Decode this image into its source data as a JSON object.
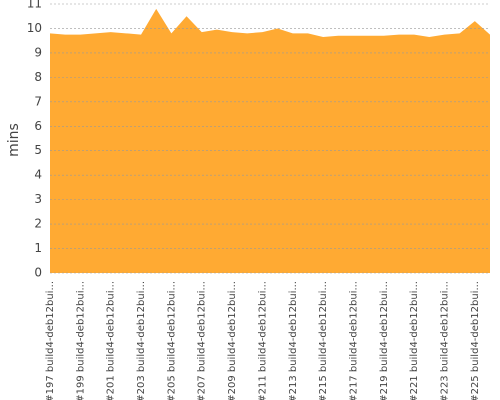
{
  "chart_data": {
    "type": "area",
    "y_label": "mins",
    "categories": [
      "#197 build4-deb12bui...",
      null,
      "#199 build4-deb12bui...",
      null,
      "#201 build4-deb12bui...",
      null,
      "#203 build4-deb12bui...",
      null,
      "#205 build4-deb12bui...",
      null,
      "#207 build4-deb12bui...",
      null,
      "#209 build4-deb12bui...",
      null,
      "#211 build4-deb12bui...",
      null,
      "#213 build4-deb12bui...",
      null,
      "#215 build4-deb12bui...",
      null,
      "#217 build4-deb12bui...",
      null,
      "#219 build4-deb12bui...",
      null,
      "#221 build4-deb12bui...",
      null,
      "#223 build4-deb12bui...",
      null,
      "#225 build4-deb12bui...",
      null
    ],
    "values": [
      9.8,
      9.75,
      9.75,
      9.8,
      9.85,
      9.8,
      9.75,
      10.8,
      9.8,
      10.5,
      9.85,
      9.95,
      9.85,
      9.8,
      9.85,
      10.0,
      9.8,
      9.8,
      9.65,
      9.7,
      9.7,
      9.7,
      9.7,
      9.75,
      9.75,
      9.65,
      9.75,
      9.8,
      10.3,
      9.75
    ],
    "color": "#ffaa33",
    "ylim": [
      0,
      11
    ],
    "yticks": [
      0,
      1,
      2,
      3,
      4,
      5,
      6,
      7,
      8,
      9,
      10,
      11
    ],
    "grid": true
  }
}
